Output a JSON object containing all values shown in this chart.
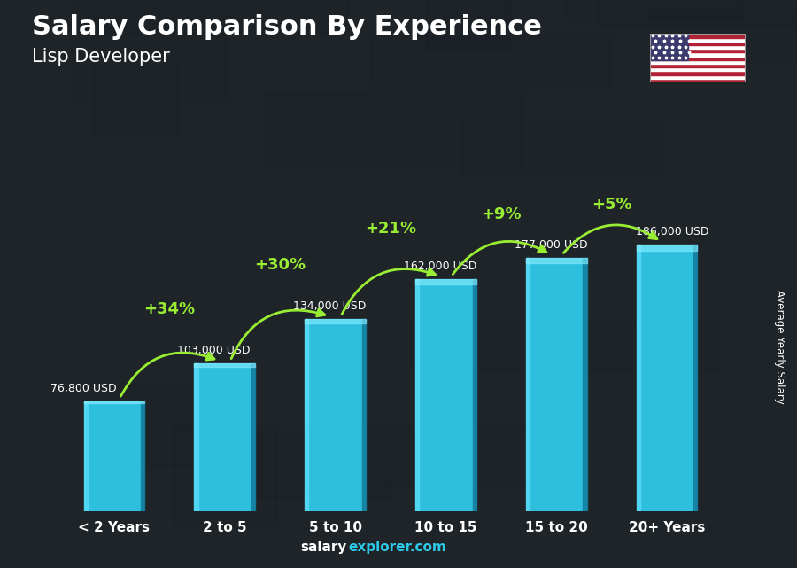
{
  "title": "Salary Comparison By Experience",
  "subtitle": "Lisp Developer",
  "categories": [
    "< 2 Years",
    "2 to 5",
    "5 to 10",
    "10 to 15",
    "15 to 20",
    "20+ Years"
  ],
  "values": [
    76800,
    103000,
    134000,
    162000,
    177000,
    186000
  ],
  "salary_labels": [
    "76,800 USD",
    "103,000 USD",
    "134,000 USD",
    "162,000 USD",
    "177,000 USD",
    "186,000 USD"
  ],
  "pct_changes": [
    "+34%",
    "+30%",
    "+21%",
    "+9%",
    "+5%"
  ],
  "bar_color_main": "#2ec8e8",
  "bar_color_light": "#55d8f5",
  "bar_color_dark": "#1899b8",
  "bar_color_side": "#1480a0",
  "bg_color": "#1c2530",
  "text_color": "#ffffff",
  "pct_color": "#99ee33",
  "ylabel": "Average Yearly Salary",
  "footer_salary": "salary",
  "footer_explorer": "explorer.com",
  "ylim": [
    0,
    230000
  ],
  "figsize": [
    9.0,
    6.41
  ],
  "dpi": 100
}
